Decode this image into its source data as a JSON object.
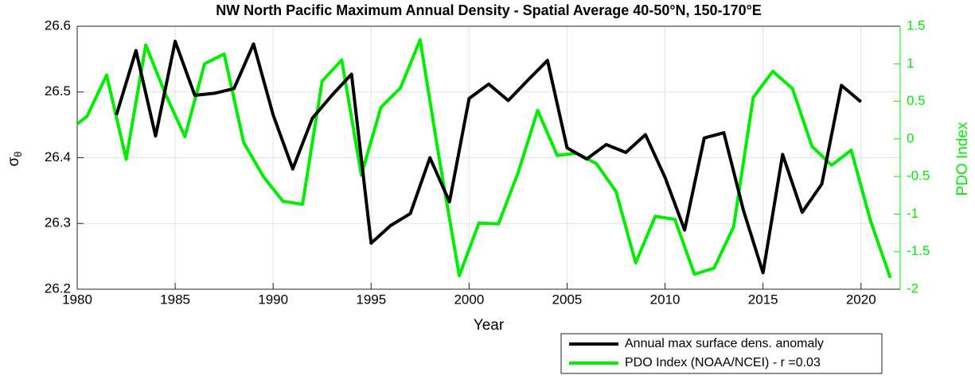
{
  "chart_data": {
    "type": "line",
    "title": "NW North Pacific Maximum Annual Density - Spatial Average 40-50°N, 150-170°E",
    "xlabel": "Year",
    "ylabel": {
      "symbol": "σ",
      "subscript": "θ"
    },
    "y2label": "PDO Index",
    "xlim": [
      1980,
      2022
    ],
    "xticks": [
      1980,
      1985,
      1990,
      1995,
      2000,
      2005,
      2010,
      2015,
      2020
    ],
    "ylim": [
      26.2,
      26.6
    ],
    "yticks": [
      26.2,
      26.3,
      26.4,
      26.5,
      26.6
    ],
    "y2lim": [
      -2,
      1.5
    ],
    "y2ticks": [
      -2,
      -1.5,
      -1,
      -0.5,
      0,
      0.5,
      1,
      1.5
    ],
    "grid": true,
    "legend": "bottom-right",
    "series": [
      {
        "name": "Annual max surface dens. anomaly",
        "color": "#000000",
        "x": [
          1982,
          1983,
          1984,
          1985,
          1986,
          1987,
          1988,
          1989,
          1990,
          1991,
          1992,
          1993,
          1994,
          1995,
          1996,
          1997,
          1998,
          1999,
          2000,
          2001,
          2002,
          2003,
          2004,
          2005,
          2006,
          2007,
          2008,
          2009,
          2010,
          2011,
          2012,
          2013,
          2014,
          2015,
          2016,
          2017,
          2018,
          2019,
          2020
        ],
        "values": [
          26.465,
          26.563,
          26.433,
          26.577,
          26.495,
          26.498,
          26.505,
          26.573,
          26.465,
          26.383,
          26.46,
          26.495,
          26.527,
          26.27,
          26.297,
          26.315,
          26.4,
          26.333,
          26.49,
          26.512,
          26.487,
          26.518,
          26.548,
          26.415,
          26.398,
          26.42,
          26.408,
          26.435,
          26.37,
          26.29,
          26.43,
          26.438,
          26.32,
          26.225,
          26.405,
          26.317,
          26.36,
          26.51,
          26.485
        ]
      },
      {
        "name": "PDO Index (NOAA/NCEI) - r =0.03",
        "color": "#00ee00",
        "axis": "y2",
        "x": [
          1980,
          1980.5,
          1981.5,
          1982.5,
          1983.5,
          1984.5,
          1985.5,
          1986.5,
          1987.5,
          1988.5,
          1989.5,
          1990.5,
          1991.5,
          1992.5,
          1993.5,
          1994.5,
          1995.5,
          1996.5,
          1997.5,
          1998.5,
          1999.5,
          2000.5,
          2001.5,
          2002.5,
          2003.5,
          2004.5,
          2005.5,
          2006.5,
          2007.5,
          2008.5,
          2009.5,
          2010.5,
          2011.5,
          2012.5,
          2013.5,
          2014.5,
          2015.5,
          2016.5,
          2017.5,
          2018.5,
          2019.5,
          2020.5,
          2021.5
        ],
        "values": [
          0.2,
          0.3,
          0.85,
          -0.27,
          1.25,
          0.6,
          0.03,
          1.0,
          1.13,
          -0.05,
          -0.5,
          -0.83,
          -0.87,
          0.77,
          1.05,
          -0.48,
          0.42,
          0.68,
          1.32,
          -0.3,
          -1.82,
          -1.12,
          -1.13,
          -0.45,
          0.38,
          -0.22,
          -0.19,
          -0.33,
          -0.7,
          -1.65,
          -1.03,
          -1.07,
          -1.8,
          -1.72,
          -1.17,
          0.55,
          0.9,
          0.67,
          -0.1,
          -0.35,
          -0.15,
          -1.1,
          -1.85
        ]
      }
    ]
  }
}
